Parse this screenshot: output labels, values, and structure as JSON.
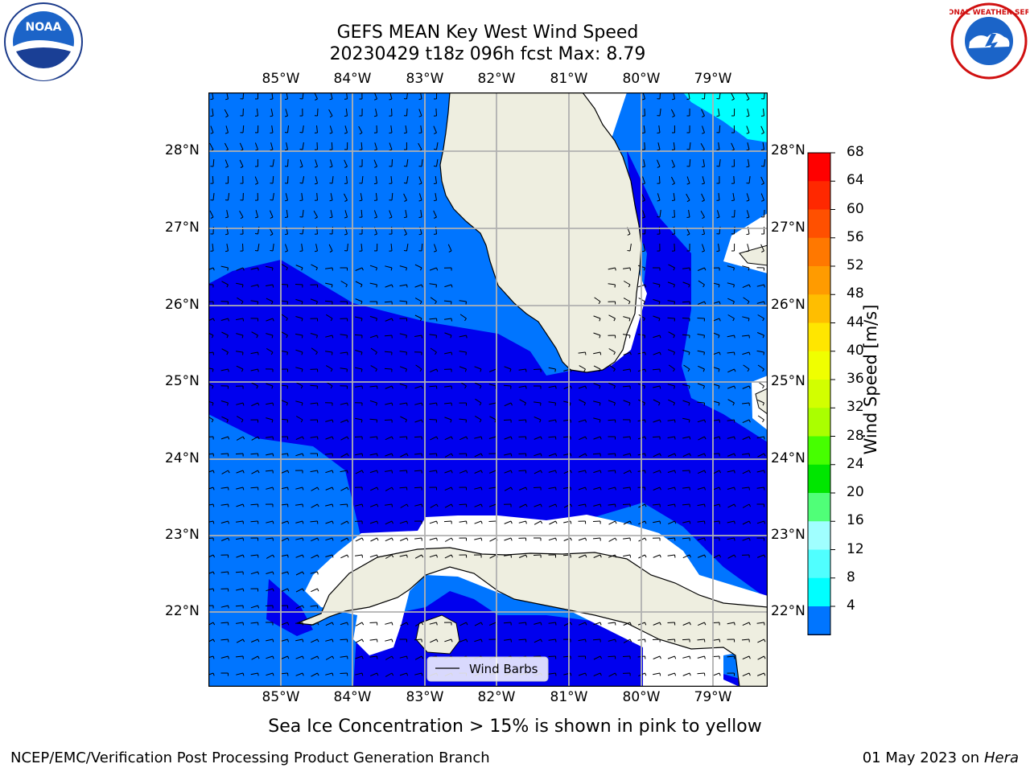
{
  "header": {
    "title_line1": "GEFS MEAN Key West Wind Speed",
    "title_line2": "20230429 t18z 096h fcst   Max: 8.79"
  },
  "logos": {
    "left": {
      "icon": "noaa-logo",
      "text": "NOAA"
    },
    "right": {
      "icon": "nws-logo",
      "text": "NATIONAL WEATHER SERVICE"
    }
  },
  "map": {
    "lon_labels": [
      "85°W",
      "84°W",
      "83°W",
      "82°W",
      "81°W",
      "80°W",
      "79°W"
    ],
    "lat_labels": [
      "28°N",
      "27°N",
      "26°N",
      "25°N",
      "24°N",
      "23°N",
      "22°N"
    ],
    "legend_label": "Wind Barbs",
    "colors": {
      "land": "#eeeee0",
      "speed_4_8": "#0075ff",
      "speed_below_4": "#0000ee",
      "speed_8_12": "#00ffff",
      "grid": "#b0b0b0"
    }
  },
  "colorbar": {
    "label": "Wind Speed [m/s]",
    "ticks": [
      "68",
      "64",
      "60",
      "56",
      "52",
      "48",
      "44",
      "40",
      "36",
      "32",
      "28",
      "24",
      "20",
      "16",
      "12",
      "8",
      "4"
    ],
    "colors": [
      "#ff0000",
      "#ff2800",
      "#ff5000",
      "#ff7800",
      "#ff9b00",
      "#ffbe00",
      "#ffe600",
      "#f0ff00",
      "#d2ff00",
      "#aaff00",
      "#46ff00",
      "#00e600",
      "#50ff78",
      "#a0ffff",
      "#50ffff",
      "#00ffff",
      "#0075ff"
    ],
    "extend_color": "#0000ee"
  },
  "caption": "Sea Ice Concentration > 15% is shown in pink to yellow",
  "footer": {
    "left": "NCEP/EMC/Verification Post Processing Product Generation Branch",
    "date": "01 May 2023 on",
    "machine": "Hera"
  }
}
